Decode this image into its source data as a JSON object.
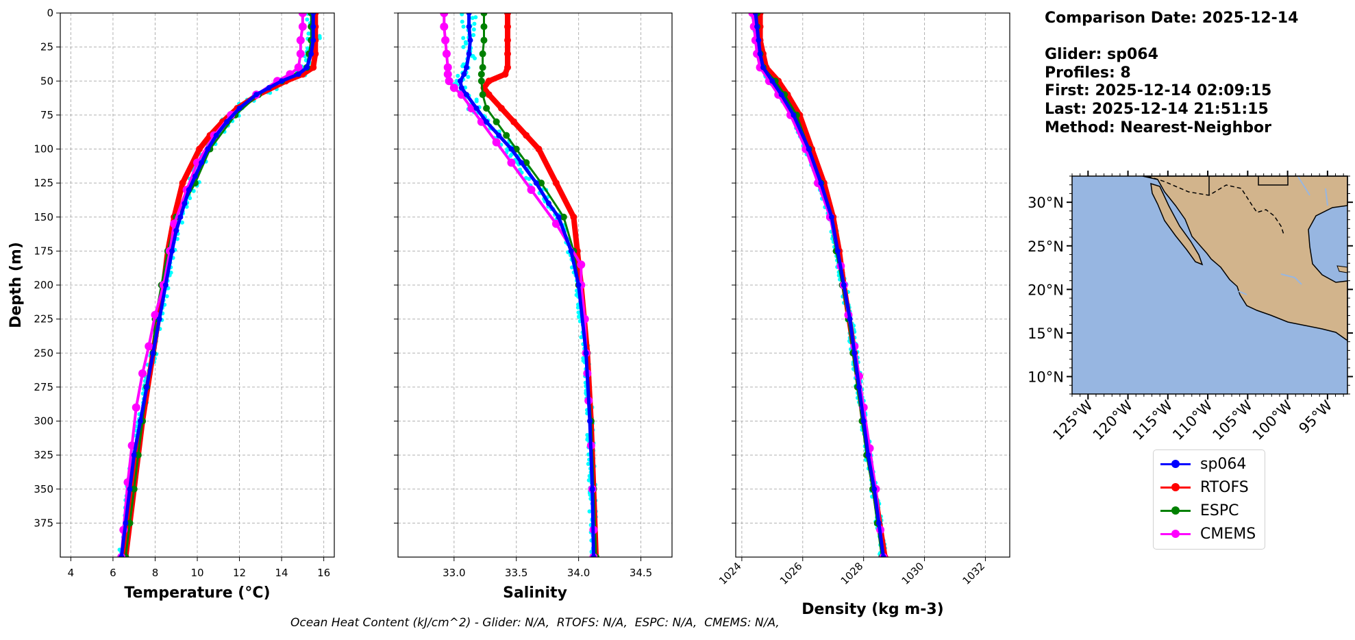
{
  "info": {
    "date_line": "Comparison Date: 2025-12-14",
    "glider_line": "Glider: sp064",
    "profiles_line": "Profiles: 8",
    "first_line": "First: 2025-12-14 02:09:15",
    "last_line": "Last: 2025-12-14 21:51:15",
    "method_line": "Method: Nearest-Neighbor"
  },
  "footer_text": "Ocean Heat Content (kJ/cm^2) - Glider: N/A,  RTOFS: N/A,  ESPC: N/A,  CMEMS: N/A,",
  "colors": {
    "sp064": "#0000ff",
    "RTOFS": "#ff0000",
    "ESPC": "#008000",
    "CMEMS": "#ff00ff",
    "glider_raw": "#00ffff",
    "ocean": "#97b6e1",
    "land": "#d2b48c"
  },
  "legend": [
    {
      "name": "sp064",
      "color": "#0000ff"
    },
    {
      "name": "RTOFS",
      "color": "#ff0000"
    },
    {
      "name": "ESPC",
      "color": "#008000"
    },
    {
      "name": "CMEMS",
      "color": "#ff00ff"
    }
  ],
  "chart_data": [
    {
      "type": "line",
      "xlabel": "Temperature (°C)",
      "ylabel": "Depth (m)",
      "xlim": [
        3.5,
        16.5
      ],
      "ylim": [
        400,
        0
      ],
      "xticks": [
        4,
        6,
        8,
        10,
        12,
        14,
        16
      ],
      "yticks": [
        0,
        25,
        50,
        75,
        100,
        125,
        150,
        175,
        200,
        225,
        250,
        275,
        300,
        325,
        350,
        375
      ],
      "grid": true,
      "series": [
        {
          "name": "RTOFS",
          "depth": [
            0,
            10,
            20,
            30,
            40,
            45,
            50,
            60,
            70,
            80,
            90,
            100,
            125,
            150,
            175,
            200,
            250,
            300,
            350,
            400
          ],
          "values": [
            15.6,
            15.6,
            15.6,
            15.6,
            15.5,
            15.0,
            14.2,
            12.9,
            11.9,
            11.2,
            10.6,
            10.1,
            9.3,
            8.9,
            8.6,
            8.4,
            7.9,
            7.4,
            7.0,
            6.6
          ]
        },
        {
          "name": "ESPC",
          "depth": [
            0,
            10,
            20,
            30,
            40,
            50,
            60,
            75,
            100,
            125,
            150,
            175,
            200,
            225,
            250,
            275,
            300,
            325,
            350,
            375,
            400
          ],
          "values": [
            15.4,
            15.4,
            15.4,
            15.3,
            15.2,
            14.0,
            12.9,
            11.8,
            10.6,
            9.9,
            9.0,
            8.6,
            8.3,
            8.0,
            7.9,
            7.6,
            7.4,
            7.2,
            7.0,
            6.8,
            6.6
          ]
        },
        {
          "name": "CMEMS",
          "depth": [
            0,
            10,
            20,
            30,
            40,
            45,
            50,
            60,
            75,
            90,
            110,
            130,
            155,
            175,
            200,
            222,
            245,
            265,
            290,
            318,
            345,
            380,
            400
          ],
          "values": [
            15.0,
            15.0,
            14.9,
            14.9,
            14.8,
            14.4,
            13.8,
            12.8,
            11.6,
            10.8,
            10.0,
            9.5,
            8.9,
            8.7,
            8.4,
            8.0,
            7.7,
            7.4,
            7.1,
            6.9,
            6.7,
            6.5,
            6.4
          ]
        },
        {
          "name": "sp064",
          "depth": [
            0,
            10,
            20,
            30,
            40,
            45,
            50,
            55,
            60,
            70,
            80,
            90,
            100,
            110,
            120,
            130,
            140,
            150,
            160,
            175,
            200,
            225,
            250,
            275,
            300,
            325,
            350,
            375,
            400
          ],
          "values": [
            15.5,
            15.5,
            15.5,
            15.4,
            15.2,
            14.8,
            14.0,
            13.4,
            12.8,
            12.0,
            11.4,
            10.9,
            10.5,
            10.2,
            9.9,
            9.6,
            9.4,
            9.2,
            9.0,
            8.8,
            8.5,
            8.2,
            7.9,
            7.6,
            7.3,
            7.0,
            6.8,
            6.6,
            6.4
          ]
        }
      ]
    },
    {
      "type": "line",
      "xlabel": "Salinity",
      "xlim": [
        32.55,
        34.75
      ],
      "ylim": [
        400,
        0
      ],
      "xticks": [
        33.0,
        33.5,
        34.0,
        34.5
      ],
      "grid": true,
      "series": [
        {
          "name": "RTOFS",
          "depth": [
            0,
            10,
            20,
            30,
            40,
            45,
            50,
            55,
            60,
            70,
            80,
            90,
            100,
            125,
            150,
            175,
            200,
            250,
            300,
            350,
            400
          ],
          "values": [
            33.43,
            33.43,
            33.43,
            33.43,
            33.43,
            33.41,
            33.28,
            33.24,
            33.28,
            33.38,
            33.48,
            33.58,
            33.68,
            33.82,
            33.96,
            33.99,
            34.02,
            34.07,
            34.1,
            34.12,
            34.14
          ]
        },
        {
          "name": "ESPC",
          "depth": [
            0,
            10,
            20,
            30,
            40,
            45,
            50,
            60,
            70,
            80,
            90,
            100,
            110,
            125,
            150,
            175,
            200,
            250,
            300,
            350,
            400
          ],
          "values": [
            33.24,
            33.24,
            33.24,
            33.23,
            33.23,
            33.22,
            33.22,
            33.23,
            33.26,
            33.34,
            33.42,
            33.5,
            33.58,
            33.7,
            33.88,
            33.96,
            34.0,
            34.06,
            34.1,
            34.12,
            34.14
          ]
        },
        {
          "name": "CMEMS",
          "depth": [
            0,
            10,
            20,
            30,
            40,
            45,
            50,
            55,
            60,
            70,
            80,
            95,
            110,
            130,
            155,
            185,
            200,
            225,
            250,
            265,
            285,
            318,
            350,
            380,
            400
          ],
          "values": [
            32.92,
            32.92,
            32.93,
            32.94,
            32.95,
            32.95,
            32.96,
            33.0,
            33.06,
            33.14,
            33.22,
            33.34,
            33.46,
            33.62,
            33.82,
            34.02,
            34.02,
            34.05,
            34.06,
            34.07,
            34.08,
            34.1,
            34.11,
            34.12,
            34.12
          ]
        },
        {
          "name": "sp064",
          "depth": [
            0,
            10,
            20,
            30,
            40,
            45,
            50,
            55,
            60,
            70,
            80,
            90,
            100,
            110,
            125,
            140,
            150,
            175,
            200,
            250,
            300,
            350,
            400
          ],
          "values": [
            33.12,
            33.12,
            33.13,
            33.12,
            33.1,
            33.08,
            33.05,
            33.06,
            33.1,
            33.18,
            33.26,
            33.36,
            33.46,
            33.54,
            33.66,
            33.76,
            33.84,
            33.94,
            34.0,
            34.06,
            34.09,
            34.11,
            34.12
          ]
        }
      ]
    },
    {
      "type": "line",
      "xlabel": "Density (kg m-3)",
      "xlim": [
        1023.8,
        1032.8
      ],
      "ylim": [
        400,
        0
      ],
      "xticks": [
        1024,
        1026,
        1028,
        1030,
        1032
      ],
      "grid": true,
      "series": [
        {
          "name": "RTOFS",
          "depth": [
            0,
            10,
            20,
            30,
            40,
            50,
            60,
            75,
            100,
            125,
            150,
            175,
            200,
            250,
            300,
            350,
            400
          ],
          "values": [
            1024.6,
            1024.6,
            1024.6,
            1024.7,
            1024.8,
            1025.2,
            1025.5,
            1025.9,
            1026.3,
            1026.7,
            1027.0,
            1027.2,
            1027.35,
            1027.7,
            1028.0,
            1028.35,
            1028.7
          ]
        },
        {
          "name": "ESPC",
          "depth": [
            0,
            10,
            20,
            30,
            40,
            50,
            60,
            75,
            100,
            125,
            150,
            175,
            200,
            225,
            250,
            275,
            300,
            325,
            350,
            375,
            400
          ],
          "values": [
            1024.5,
            1024.5,
            1024.5,
            1024.6,
            1024.7,
            1025.1,
            1025.4,
            1025.8,
            1026.2,
            1026.6,
            1026.9,
            1027.1,
            1027.3,
            1027.5,
            1027.65,
            1027.8,
            1027.95,
            1028.1,
            1028.3,
            1028.45,
            1028.6
          ]
        },
        {
          "name": "CMEMS",
          "depth": [
            0,
            10,
            20,
            30,
            40,
            50,
            60,
            75,
            100,
            125,
            150,
            186,
            200,
            222,
            245,
            267,
            290,
            320,
            350,
            380,
            400
          ],
          "values": [
            1024.35,
            1024.4,
            1024.45,
            1024.5,
            1024.6,
            1024.9,
            1025.2,
            1025.6,
            1026.1,
            1026.5,
            1026.9,
            1027.25,
            1027.35,
            1027.5,
            1027.7,
            1027.85,
            1028.0,
            1028.2,
            1028.4,
            1028.55,
            1028.65
          ]
        },
        {
          "name": "sp064",
          "depth": [
            0,
            10,
            20,
            30,
            40,
            50,
            60,
            75,
            100,
            125,
            150,
            175,
            200,
            225,
            250,
            275,
            300,
            325,
            350,
            375,
            400
          ],
          "values": [
            1024.45,
            1024.5,
            1024.55,
            1024.6,
            1024.7,
            1025.0,
            1025.3,
            1025.7,
            1026.2,
            1026.6,
            1026.95,
            1027.15,
            1027.35,
            1027.55,
            1027.7,
            1027.85,
            1028.0,
            1028.15,
            1028.35,
            1028.5,
            1028.65
          ]
        }
      ]
    },
    {
      "type": "map",
      "lat_range": [
        8,
        33
      ],
      "lon_range": [
        -127,
        -92.5
      ],
      "lat_ticks": [
        "10°N",
        "15°N",
        "20°N",
        "25°N",
        "30°N"
      ],
      "lon_ticks": [
        "125°W",
        "120°W",
        "115°W",
        "110°W",
        "105°W",
        "100°W",
        "95°W"
      ]
    }
  ]
}
